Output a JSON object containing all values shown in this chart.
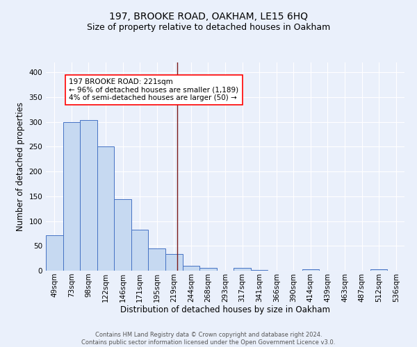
{
  "title": "197, BROOKE ROAD, OAKHAM, LE15 6HQ",
  "subtitle": "Size of property relative to detached houses in Oakham",
  "xlabel": "Distribution of detached houses by size in Oakham",
  "ylabel": "Number of detached properties",
  "footer_line1": "Contains HM Land Registry data © Crown copyright and database right 2024.",
  "footer_line2": "Contains public sector information licensed under the Open Government Licence v3.0.",
  "bin_labels": [
    "49sqm",
    "73sqm",
    "98sqm",
    "122sqm",
    "146sqm",
    "171sqm",
    "195sqm",
    "219sqm",
    "244sqm",
    "268sqm",
    "293sqm",
    "317sqm",
    "341sqm",
    "366sqm",
    "390sqm",
    "414sqm",
    "439sqm",
    "463sqm",
    "487sqm",
    "512sqm",
    "536sqm"
  ],
  "bar_heights": [
    72,
    299,
    304,
    250,
    144,
    83,
    45,
    34,
    10,
    6,
    0,
    6,
    2,
    0,
    0,
    3,
    0,
    0,
    0,
    3,
    0
  ],
  "bar_color": "#c6d9f1",
  "bar_edge_color": "#4472c4",
  "vline_x_index": 7.18,
  "vline_color": "#7b1a1a",
  "annotation_text": "197 BROOKE ROAD: 221sqm\n← 96% of detached houses are smaller (1,189)\n4% of semi-detached houses are larger (50) →",
  "annotation_box_color": "white",
  "annotation_box_edge_color": "red",
  "ylim": [
    0,
    420
  ],
  "background_color": "#eaf0fb",
  "grid_color": "#ffffff",
  "title_fontsize": 10,
  "subtitle_fontsize": 9,
  "axis_label_fontsize": 8.5,
  "tick_fontsize": 7.5,
  "annotation_fontsize": 7.5,
  "footer_fontsize": 6.0
}
